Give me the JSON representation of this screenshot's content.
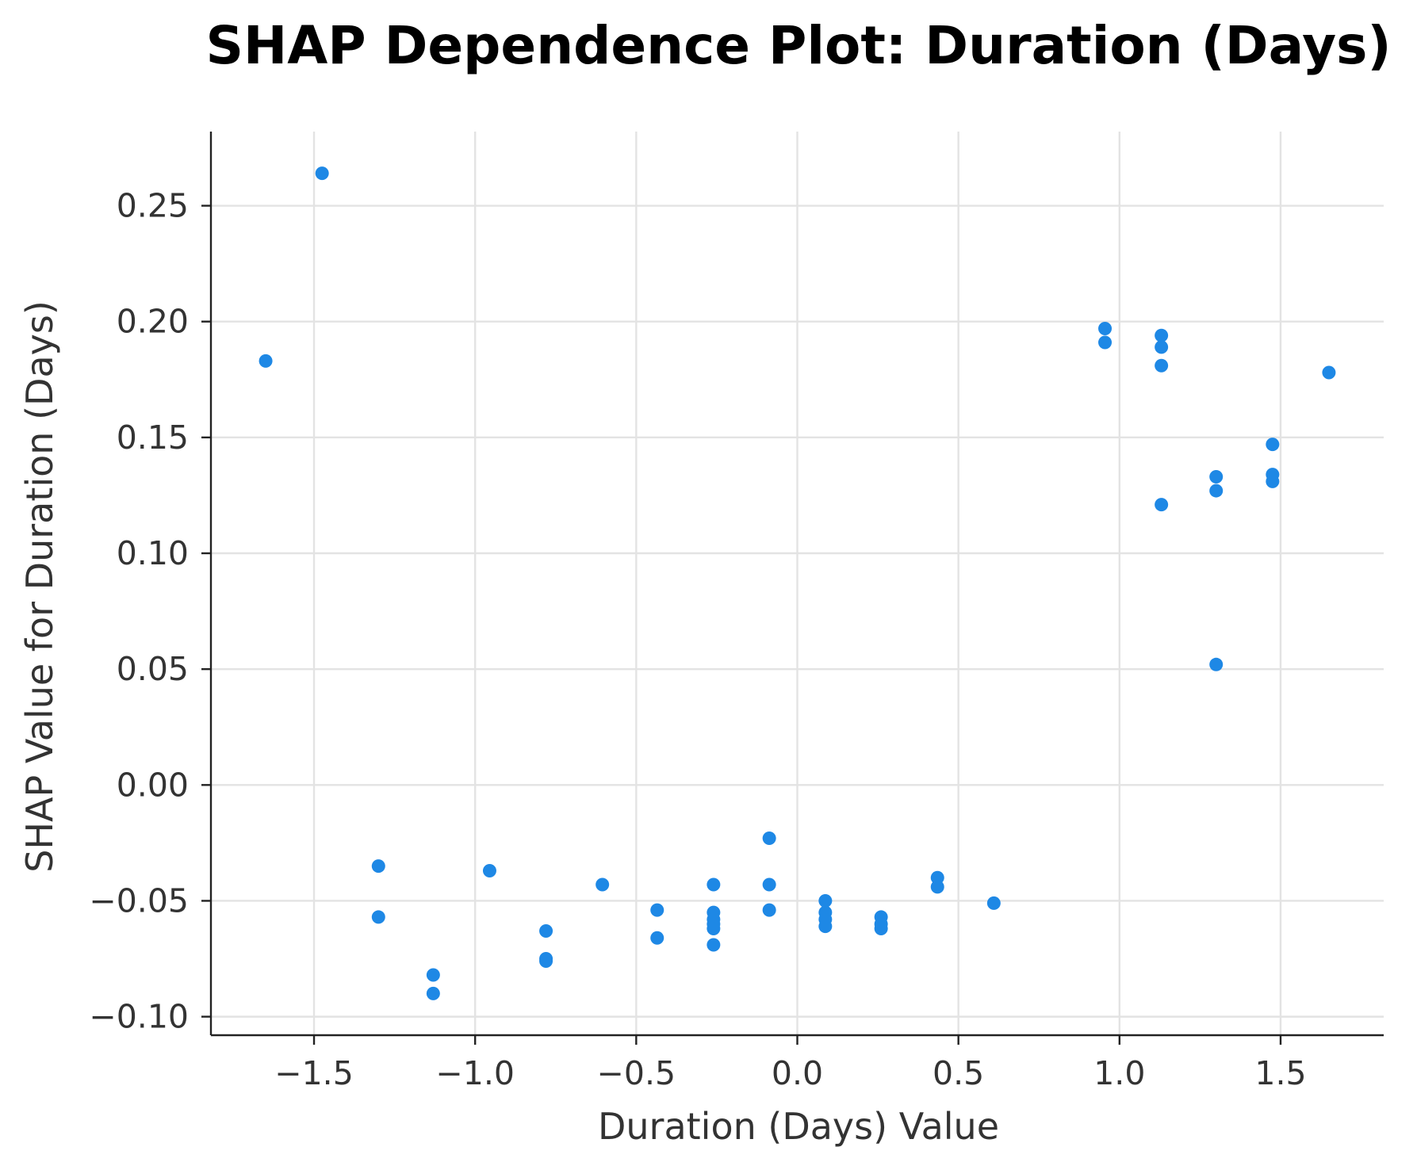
{
  "chart_data": {
    "type": "scatter",
    "title": "SHAP Dependence Plot: Duration (Days)",
    "xlabel": "Duration (Days) Value",
    "ylabel": "SHAP Value for Duration (Days)",
    "xlim": [
      -1.82,
      1.82
    ],
    "ylim": [
      -0.108,
      0.282
    ],
    "xticks": [
      -1.5,
      -1.0,
      -0.5,
      0.0,
      0.5,
      1.0,
      1.5
    ],
    "xtick_labels": [
      "−1.5",
      "−1.0",
      "−0.5",
      "0.0",
      "0.5",
      "1.0",
      "1.5"
    ],
    "yticks": [
      -0.1,
      -0.05,
      0.0,
      0.05,
      0.1,
      0.15,
      0.2,
      0.25
    ],
    "ytick_labels": [
      "−0.10",
      "−0.05",
      "0.00",
      "0.05",
      "0.10",
      "0.15",
      "0.20",
      "0.25"
    ],
    "grid": true,
    "point_color": "#1e88e5",
    "points": [
      {
        "x": -1.65,
        "y": 0.183
      },
      {
        "x": -1.475,
        "y": 0.264
      },
      {
        "x": -1.3,
        "y": -0.035
      },
      {
        "x": -1.3,
        "y": -0.057
      },
      {
        "x": -1.13,
        "y": -0.082
      },
      {
        "x": -1.13,
        "y": -0.09
      },
      {
        "x": -0.955,
        "y": -0.037
      },
      {
        "x": -0.78,
        "y": -0.063
      },
      {
        "x": -0.78,
        "y": -0.075
      },
      {
        "x": -0.78,
        "y": -0.076
      },
      {
        "x": -0.605,
        "y": -0.043
      },
      {
        "x": -0.435,
        "y": -0.054
      },
      {
        "x": -0.435,
        "y": -0.066
      },
      {
        "x": -0.26,
        "y": -0.043
      },
      {
        "x": -0.26,
        "y": -0.055
      },
      {
        "x": -0.26,
        "y": -0.058
      },
      {
        "x": -0.26,
        "y": -0.06
      },
      {
        "x": -0.26,
        "y": -0.062
      },
      {
        "x": -0.26,
        "y": -0.069
      },
      {
        "x": -0.087,
        "y": -0.023
      },
      {
        "x": -0.087,
        "y": -0.043
      },
      {
        "x": -0.087,
        "y": -0.054
      },
      {
        "x": 0.087,
        "y": -0.05
      },
      {
        "x": 0.087,
        "y": -0.055
      },
      {
        "x": 0.087,
        "y": -0.058
      },
      {
        "x": 0.087,
        "y": -0.061
      },
      {
        "x": 0.26,
        "y": -0.057
      },
      {
        "x": 0.26,
        "y": -0.06
      },
      {
        "x": 0.26,
        "y": -0.062
      },
      {
        "x": 0.435,
        "y": -0.04
      },
      {
        "x": 0.435,
        "y": -0.044
      },
      {
        "x": 0.61,
        "y": -0.051
      },
      {
        "x": 0.955,
        "y": 0.197
      },
      {
        "x": 0.955,
        "y": 0.191
      },
      {
        "x": 1.13,
        "y": 0.194
      },
      {
        "x": 1.13,
        "y": 0.189
      },
      {
        "x": 1.13,
        "y": 0.181
      },
      {
        "x": 1.13,
        "y": 0.121
      },
      {
        "x": 1.3,
        "y": 0.133
      },
      {
        "x": 1.3,
        "y": 0.127
      },
      {
        "x": 1.3,
        "y": 0.052
      },
      {
        "x": 1.475,
        "y": 0.147
      },
      {
        "x": 1.475,
        "y": 0.134
      },
      {
        "x": 1.475,
        "y": 0.131
      },
      {
        "x": 1.65,
        "y": 0.178
      }
    ]
  }
}
